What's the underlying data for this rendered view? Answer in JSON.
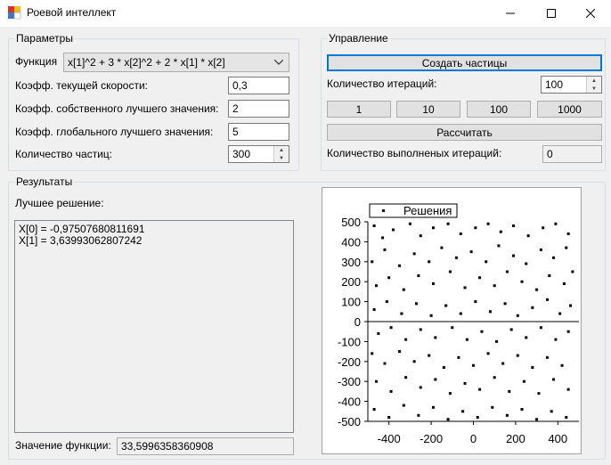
{
  "window": {
    "title": "Роевой интеллект"
  },
  "params": {
    "title": "Параметры",
    "function_label": "Функция",
    "function_value": "x[1]^2 + 3 * x[2]^2 + 2 * x[1] * x[2]",
    "speed_label": "Коэфф. текущей скорости:",
    "speed_value": "0,3",
    "own_best_label": "Коэфф. собственного лучшего значения:",
    "own_best_value": "2",
    "global_best_label": "Коэфф. глобального лучшего значения:",
    "global_best_value": "5",
    "particles_label": "Количество частиц:",
    "particles_value": "300"
  },
  "control": {
    "title": "Управление",
    "create_label": "Создать частицы",
    "iter_label": "Количество итераций:",
    "iter_value": "100",
    "preset_1": "1",
    "preset_10": "10",
    "preset_100": "100",
    "preset_1000": "1000",
    "calc_label": "Рассчитать",
    "done_label": "Количество выполненых итераций:",
    "done_value": "0"
  },
  "results": {
    "title": "Результаты",
    "best_label": "Лучшее решение:",
    "best_line1": "X[0] = -0,97507680811691",
    "best_line2": "X[1] = 3,63993062807242",
    "func_label": "Значение функции:",
    "func_value": "33,5996358360908"
  },
  "chart_data": {
    "type": "scatter",
    "series": [
      {
        "name": "Решения",
        "color": "#000000"
      }
    ],
    "xlim": [
      -500,
      500
    ],
    "ylim": [
      -500,
      500
    ],
    "xticks": [
      "-400",
      "-200",
      "0",
      "200",
      "400"
    ],
    "yticks": [
      "500",
      "400",
      "300",
      "200",
      "100",
      "0",
      "-100",
      "-200",
      "-300",
      "-400",
      "-500"
    ],
    "legend": "top-left",
    "points": [
      [
        -470,
        480
      ],
      [
        -430,
        420
      ],
      [
        -380,
        460
      ],
      [
        -300,
        490
      ],
      [
        -250,
        430
      ],
      [
        -190,
        470
      ],
      [
        -120,
        490
      ],
      [
        -60,
        440
      ],
      [
        10,
        470
      ],
      [
        70,
        490
      ],
      [
        130,
        450
      ],
      [
        190,
        480
      ],
      [
        260,
        430
      ],
      [
        330,
        470
      ],
      [
        390,
        490
      ],
      [
        450,
        440
      ],
      [
        -480,
        300
      ],
      [
        -420,
        360
      ],
      [
        -350,
        280
      ],
      [
        -280,
        340
      ],
      [
        -210,
        300
      ],
      [
        -150,
        370
      ],
      [
        -80,
        320
      ],
      [
        -10,
        350
      ],
      [
        60,
        300
      ],
      [
        120,
        380
      ],
      [
        190,
        330
      ],
      [
        250,
        290
      ],
      [
        320,
        360
      ],
      [
        380,
        320
      ],
      [
        440,
        370
      ],
      [
        -460,
        180
      ],
      [
        -400,
        220
      ],
      [
        -330,
        160
      ],
      [
        -260,
        230
      ],
      [
        -190,
        190
      ],
      [
        -110,
        250
      ],
      [
        -40,
        170
      ],
      [
        30,
        220
      ],
      [
        100,
        180
      ],
      [
        160,
        250
      ],
      [
        230,
        200
      ],
      [
        300,
        160
      ],
      [
        360,
        230
      ],
      [
        430,
        190
      ],
      [
        470,
        250
      ],
      [
        -470,
        60
      ],
      [
        -410,
        100
      ],
      [
        -340,
        40
      ],
      [
        -270,
        90
      ],
      [
        -200,
        30
      ],
      [
        -130,
        80
      ],
      [
        -60,
        40
      ],
      [
        10,
        100
      ],
      [
        80,
        50
      ],
      [
        150,
        90
      ],
      [
        210,
        30
      ],
      [
        280,
        70
      ],
      [
        350,
        110
      ],
      [
        410,
        40
      ],
      [
        460,
        80
      ],
      [
        -450,
        -60
      ],
      [
        -390,
        -30
      ],
      [
        -320,
        -90
      ],
      [
        -250,
        -40
      ],
      [
        -180,
        -80
      ],
      [
        -100,
        -30
      ],
      [
        -30,
        -90
      ],
      [
        40,
        -50
      ],
      [
        110,
        -100
      ],
      [
        180,
        -40
      ],
      [
        250,
        -80
      ],
      [
        320,
        -30
      ],
      [
        390,
        -90
      ],
      [
        450,
        -50
      ],
      [
        -480,
        -160
      ],
      [
        -420,
        -210
      ],
      [
        -350,
        -150
      ],
      [
        -280,
        -200
      ],
      [
        -210,
        -170
      ],
      [
        -140,
        -230
      ],
      [
        -70,
        -180
      ],
      [
        0,
        -220
      ],
      [
        70,
        -160
      ],
      [
        140,
        -210
      ],
      [
        210,
        -170
      ],
      [
        280,
        -230
      ],
      [
        350,
        -180
      ],
      [
        420,
        -220
      ],
      [
        -460,
        -300
      ],
      [
        -390,
        -350
      ],
      [
        -320,
        -280
      ],
      [
        -250,
        -330
      ],
      [
        -180,
        -290
      ],
      [
        -110,
        -360
      ],
      [
        -40,
        -310
      ],
      [
        30,
        -340
      ],
      [
        100,
        -280
      ],
      [
        170,
        -350
      ],
      [
        240,
        -300
      ],
      [
        310,
        -360
      ],
      [
        380,
        -290
      ],
      [
        450,
        -340
      ],
      [
        -470,
        -440
      ],
      [
        -400,
        -480
      ],
      [
        -330,
        -420
      ],
      [
        -260,
        -470
      ],
      [
        -190,
        -430
      ],
      [
        -120,
        -490
      ],
      [
        -50,
        -450
      ],
      [
        20,
        -480
      ],
      [
        90,
        -430
      ],
      [
        160,
        -470
      ],
      [
        230,
        -440
      ],
      [
        300,
        -490
      ],
      [
        370,
        -450
      ],
      [
        440,
        -480
      ]
    ]
  }
}
